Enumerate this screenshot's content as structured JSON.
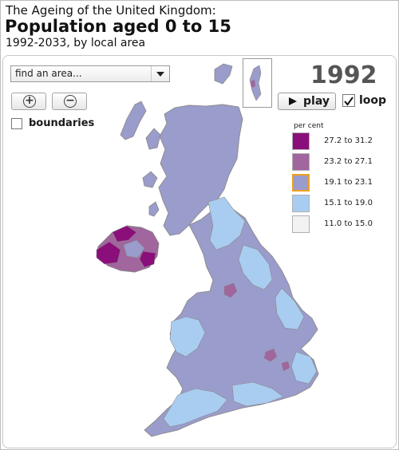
{
  "header": {
    "kicker": "The Ageing of the United Kingdom:",
    "title": "Population aged 0 to 15",
    "subtitle": "1992-2033, by local area"
  },
  "controls": {
    "search_value": "find an area...",
    "zoom_in_icon": "plus-circle-icon",
    "zoom_out_icon": "minus-circle-icon",
    "boundaries_label": "boundaries",
    "boundaries_checked": false,
    "year": "1992",
    "play_label": "play",
    "play_icon": "play-triangle-icon",
    "loop_label": "loop",
    "loop_checked": true
  },
  "legend": {
    "title": "per cent",
    "items": [
      {
        "range": "27.2 to 31.2",
        "color": "#8b0f7a"
      },
      {
        "range": "23.2 to 27.1",
        "color": "#a0669d"
      },
      {
        "range": "19.1 to 23.1",
        "color": "#9a9ccb",
        "selected": true
      },
      {
        "range": "15.1 to 19.0",
        "color": "#a9cdf1"
      },
      {
        "range": "11.0 to 15.0",
        "color": "#f2f2f2"
      }
    ],
    "selected_border_color": "#f0a020"
  },
  "map": {
    "base_color": "#9a9ccb",
    "north_ireland_color": "#a0669d",
    "light_color": "#a9cdf1",
    "dark_color": "#8b0f7a",
    "border_color": "#8a8a8a"
  }
}
